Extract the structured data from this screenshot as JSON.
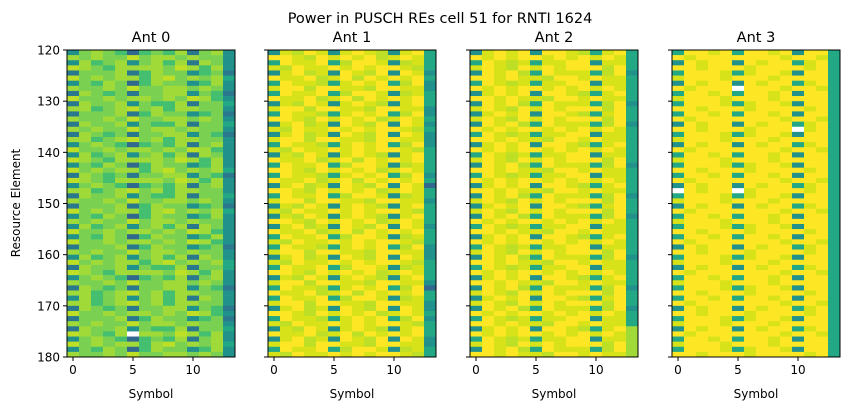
{
  "chart_data": {
    "type": "heatmap",
    "title": "Power in PUSCH REs cell 51 for RNTI 1624",
    "ylabel": "Resource Element",
    "xlabel": "Symbol",
    "xlim": [
      -0.5,
      13.5
    ],
    "ylim": [
      180,
      120
    ],
    "x_ticks": [
      0,
      5,
      10
    ],
    "y_ticks": [
      120,
      130,
      140,
      150,
      160,
      170,
      180
    ],
    "y_start": 120,
    "colormap": "viridis",
    "level_colors": [
      "#31688e",
      "#2a788e",
      "#21918c",
      "#22a884",
      "#44bf70",
      "#7ad151",
      "#a0da39",
      "#bddf26",
      "#d8e219",
      "#fde725"
    ],
    "missing_color": "#ffffff",
    "value_encoding": "each row string = relative power level 0-9 per symbol 0..13; '-' = no value (white)",
    "grid": false,
    "panels": [
      {
        "title": "Ant 0",
        "rows": [
          "25654045461562",
          "65655756656552",
          "26456256461652",
          "76546666576462",
          "15556146552451",
          "75656646756563",
          "25465046552462",
          "65565755665652",
          "16545155662541",
          "75565665657642",
          "16556254461553",
          "66456756466552",
          "15556146552451",
          "65565755665652",
          "16556254461553",
          "65655756656552",
          "16545155662541",
          "66456756466552",
          "25654045461562",
          "75565665657642",
          "26456256461652",
          "76546666576462",
          "25465046552462",
          "75656646756563",
          "16545155662541",
          "76546666576462",
          "25654045461562",
          "66456756466552",
          "16556254461553",
          "65565755665652",
          "15556146552451",
          "75656646756563",
          "25465046552462",
          "65655756656552",
          "26456256461652",
          "75565665657642",
          "25465046552462",
          "75565665657642",
          "15556146552451",
          "65655756656552",
          "26456256461652",
          "75656646756563",
          "16556254461553",
          "76546666576462",
          "25654045461562",
          "65565755665652",
          "16545155662541",
          "66456756466552",
          "26456256461652",
          "66456756466552",
          "16545155662541",
          "75565665657642",
          "15556146552451",
          "65655756656552",
          "16556254461553",
          "76546-66576462",
          "25654045461562",
          "75656646756563",
          "25465046552462",
          "65565755665652"
        ]
      },
      {
        "title": "Ant 1",
        "rows": [
          "28798289872893",
          "99879898978983",
          "39889379982783",
          "87988989899873",
          "28978298792982",
          "98897897989893",
          "39887389893792",
          "89979988799882",
          "39889379982783",
          "98897897989893",
          "28798289872893",
          "89979988799882",
          "39887389893792",
          "99879898978983",
          "28978298792982",
          "87988989899873",
          "28978298792982",
          "89979988799882",
          "39887389893792",
          "87988989899873",
          "28798289872893",
          "98897897989893",
          "39889379982783",
          "99879898978983",
          "39887389893792",
          "98897897989893",
          "28978298792980",
          "99879898978983",
          "39889379982783",
          "89979988799882",
          "28798289872893",
          "87988989899873",
          "28798289872893",
          "99879898978983",
          "28978298792982",
          "98897897989893",
          "39889379982783",
          "87988989899873",
          "39887389893792",
          "89979988799882",
          "28978298792982",
          "87988989899873",
          "39889379982783",
          "99879898978983",
          "28798289872893",
          "89979988799882",
          "39887389893790",
          "98897897989893",
          "39889379982783",
          "89979988799882",
          "28978298792982",
          "99879898978983",
          "39887389893792",
          "87988989899873",
          "28798289872893",
          "98897897989893",
          "28978298792982",
          "89979988799882",
          "39889379982783",
          "87988989899873"
        ]
      },
      {
        "title": "Ant 2",
        "rows": [
          "28989299873893",
          "98989989898983",
          "39878388992883",
          "89879898999793",
          "29897398883792",
          "99898879989883",
          "39878388992883",
          "98989989898983",
          "28989299873893",
          "99898879989883",
          "29897398883792",
          "89879898999793",
          "28989299873893",
          "89879898999793",
          "29897398883792",
          "98989989898983",
          "39878388992883",
          "99898879989883",
          "28989299873893",
          "98989989898983",
          "39878388992883",
          "89879898999793",
          "29897398883792",
          "99898879989883",
          "39878388992883",
          "98989989898983",
          "28989299873893",
          "99898879989883",
          "29897398883792",
          "89879898999793",
          "28989299873893",
          "89879898999793",
          "29897398883792",
          "98989989898983",
          "39878388992883",
          "99898879989883",
          "28989299873893",
          "98989989898983",
          "39878388992883",
          "89879898999793",
          "29897398883792",
          "99898879989883",
          "39878388992883",
          "98989989898983",
          "28989299873893",
          "99898879989883",
          "29897398883792",
          "89879898999793",
          "28989299873893",
          "89879898999793",
          "29897398883792",
          "98989989898983",
          "39878388992883",
          "99898879989883",
          "28989299873896",
          "98989989898986",
          "39878388992886",
          "89879898999796",
          "29897398883796",
          "99898879989886"
        ]
      },
      {
        "title": "Ant 3",
        "rows": [
          "39989399892993",
          "98999999989983",
          "29899298993893",
          "99899989999893",
          "39998389982993",
          "89998999899993",
          "29899298993893",
          "98999-99989983",
          "39989399892993",
          "89998999899993",
          "39998389982993",
          "99899989999893",
          "39989399892993",
          "98999999989983",
          "29899298993893",
          "9989998999-893",
          "39998389982993",
          "89998999899993",
          "29899298993893",
          "98999999989983",
          "39989399892993",
          "89998999899993",
          "39998389982993",
          "99899989999893",
          "39989399892993",
          "98999999989983",
          "29899298993893",
          "-9899-89999893",
          "39998389982993",
          "89998999899993",
          "29899298993893",
          "98999999989983",
          "39989399892993",
          "89998999899993",
          "39998389982993",
          "99899989999893",
          "39989399892993",
          "98999999989983",
          "29899298993893",
          "99899989999893",
          "39998389982993",
          "89998999899993",
          "29899298993893",
          "98999999989983",
          "39989399892993",
          "89998999899993",
          "39998389982993",
          "99899989999893",
          "39989399892993",
          "98999999989983",
          "29899298993893",
          "99899989999893",
          "39998389982993",
          "89998999899993",
          "29899298993893",
          "98999999989983",
          "39989399892993",
          "89998999899993",
          "39998389982993",
          "99899989999893"
        ]
      }
    ]
  }
}
